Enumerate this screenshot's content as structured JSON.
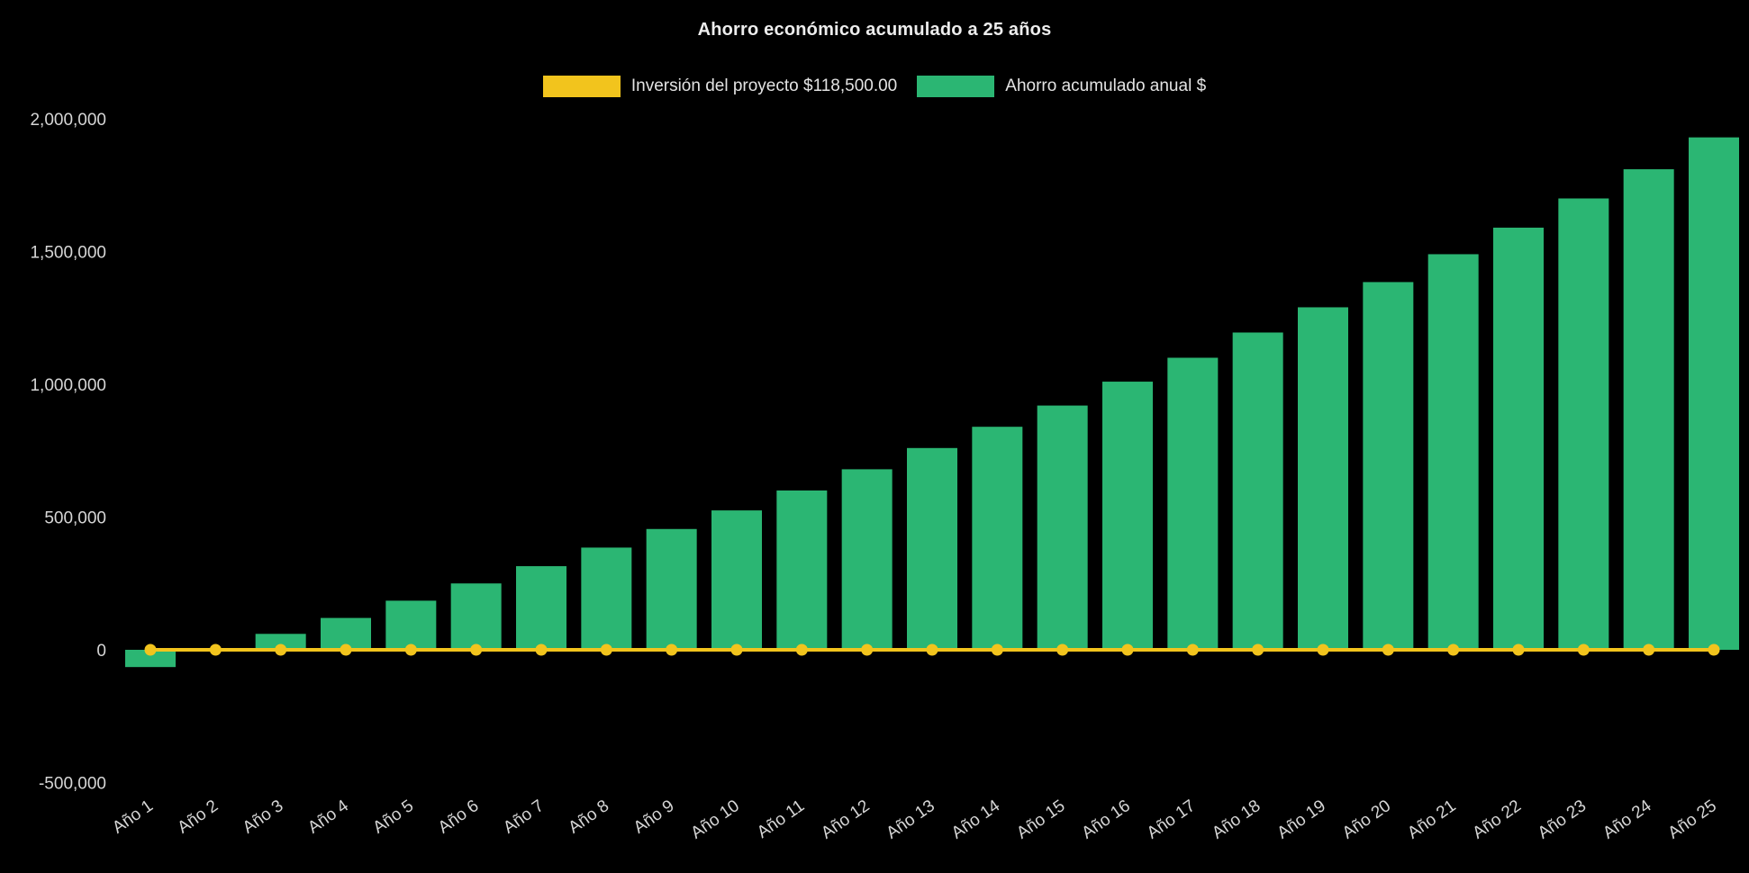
{
  "title": "Ahorro económico acumulado a 25 años",
  "legend": {
    "items": [
      {
        "label": "Inversión del proyecto $118,500.00",
        "color": "#f2c41d",
        "series_type": "line"
      },
      {
        "label": "Ahorro acumulado anual $",
        "color": "#2bb673",
        "series_type": "bar"
      }
    ]
  },
  "colors": {
    "background": "#000000",
    "bar": "#2bb673",
    "line": "#f2c41d",
    "axis_text": "#d6d6d6",
    "title_text": "#ededed"
  },
  "chart_data": {
    "type": "bar",
    "title": "Ahorro económico acumulado a 25 años",
    "categories": [
      "Año 1",
      "Año 2",
      "Año 3",
      "Año 4",
      "Año 5",
      "Año 6",
      "Año 7",
      "Año 8",
      "Año 9",
      "Año 10",
      "Año 11",
      "Año 12",
      "Año 13",
      "Año 14",
      "Año 15",
      "Año 16",
      "Año 17",
      "Año 18",
      "Año 19",
      "Año 20",
      "Año 21",
      "Año 22",
      "Año 23",
      "Año 24",
      "Año 25"
    ],
    "series": [
      {
        "name": "Inversión del proyecto $118,500.00",
        "type": "line",
        "color": "#f2c41d",
        "marker": "circle",
        "values": [
          0,
          0,
          0,
          0,
          0,
          0,
          0,
          0,
          0,
          0,
          0,
          0,
          0,
          0,
          0,
          0,
          0,
          0,
          0,
          0,
          0,
          0,
          0,
          0,
          0
        ]
      },
      {
        "name": "Ahorro acumulado anual $",
        "type": "bar",
        "color": "#2bb673",
        "values": [
          -65000,
          5000,
          60000,
          120000,
          185000,
          250000,
          315000,
          385000,
          455000,
          525000,
          600000,
          680000,
          760000,
          840000,
          920000,
          1010000,
          1100000,
          1195000,
          1290000,
          1385000,
          1490000,
          1590000,
          1700000,
          1810000,
          1930000
        ]
      }
    ],
    "xlabel": "",
    "ylabel": "",
    "ylim": [
      -500000,
      2000000
    ],
    "yticks": [
      2000000,
      1500000,
      1000000,
      500000,
      0,
      -500000
    ],
    "ytick_labels": [
      "2,000,000",
      "1,500,000",
      "1,000,000",
      "500,000",
      "0",
      "-500,000"
    ],
    "x_tick_rotation": -35,
    "grid": false,
    "legend_position": "top"
  }
}
